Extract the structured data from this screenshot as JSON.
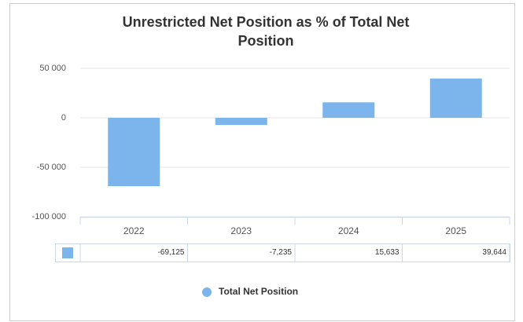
{
  "chart_data": {
    "type": "bar",
    "title": "Unrestricted Net Position as % of Total Net Position",
    "categories": [
      "2022",
      "2023",
      "2024",
      "2025"
    ],
    "series": [
      {
        "name": "Total Net Position",
        "color": "#7cb5ec",
        "values": [
          -69125,
          -7235,
          15633,
          39644
        ],
        "value_labels": [
          "-69,125",
          "-7,235",
          "15,633",
          "39,644"
        ]
      }
    ],
    "ylim": [
      -100000,
      50000
    ],
    "yticks": [
      {
        "value": 50000,
        "label": "50 000"
      },
      0,
      {
        "value": -50000,
        "label": "-50 000"
      },
      {
        "value": -100000,
        "label": "-100 000"
      }
    ],
    "grid": true,
    "legend": "bottom"
  }
}
